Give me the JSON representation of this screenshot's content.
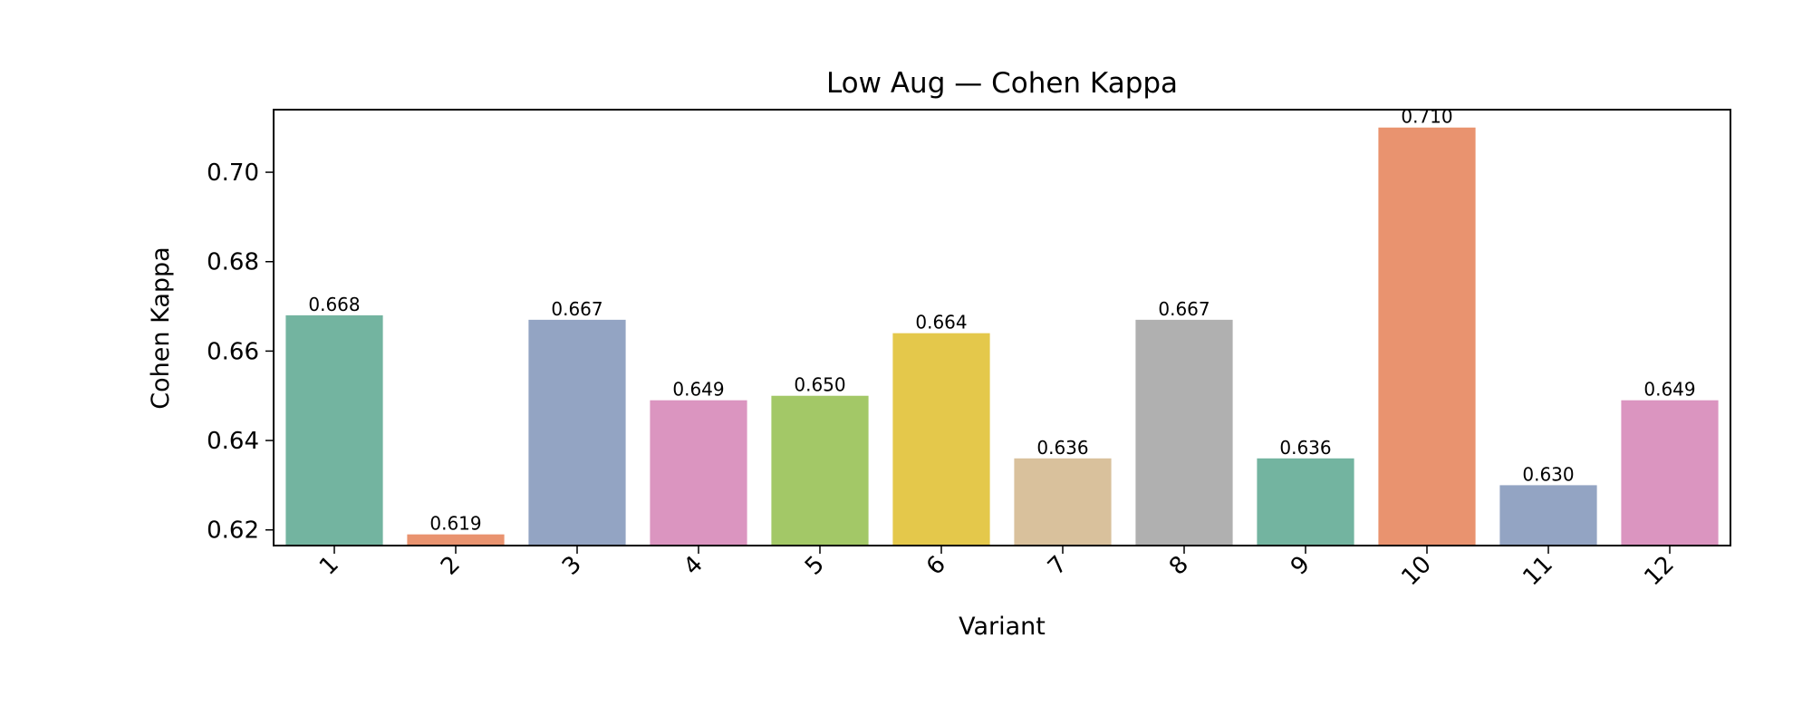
{
  "chart_data": {
    "type": "bar",
    "title": "Low Aug — Cohen Kappa",
    "xlabel": "Variant",
    "ylabel": "Cohen Kappa",
    "categories": [
      "1",
      "2",
      "3",
      "4",
      "5",
      "6",
      "7",
      "8",
      "9",
      "10",
      "11",
      "12"
    ],
    "values": [
      0.668,
      0.619,
      0.667,
      0.649,
      0.65,
      0.664,
      0.636,
      0.667,
      0.636,
      0.71,
      0.63,
      0.649
    ],
    "data_labels": [
      "0.668",
      "0.619",
      "0.667",
      "0.649",
      "0.650",
      "0.664",
      "0.636",
      "0.667",
      "0.636",
      "0.710",
      "0.630",
      "0.649"
    ],
    "colors": [
      "#73b4a0",
      "#e9936f",
      "#93a4c3",
      "#db95c0",
      "#a3c867",
      "#e4c84b",
      "#d9c19c",
      "#b0b0b0",
      "#73b4a0",
      "#e9936f",
      "#93a4c3",
      "#db95c0"
    ],
    "yticks": [
      "0.62",
      "0.64",
      "0.66",
      "0.68",
      "0.70"
    ],
    "ylim": [
      0.6165,
      0.714
    ],
    "grid": false,
    "legend": "none"
  }
}
